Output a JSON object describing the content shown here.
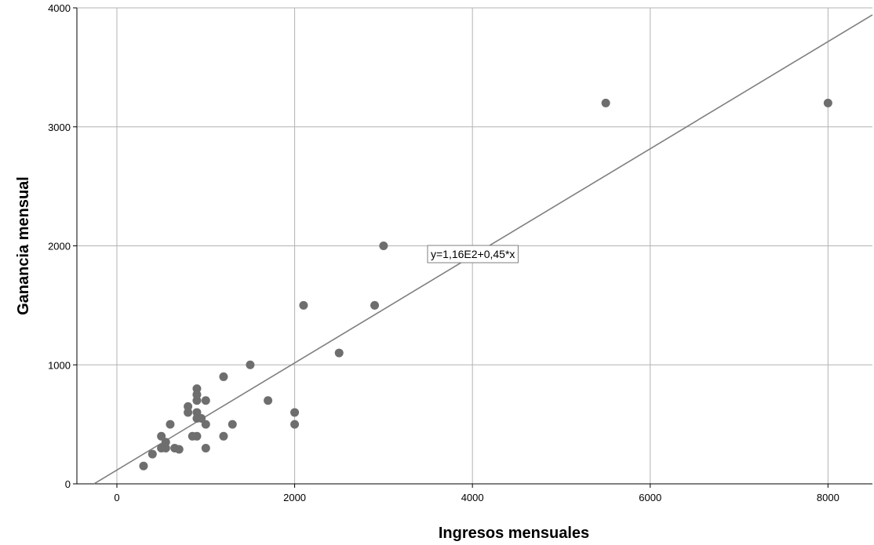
{
  "chart_data": {
    "type": "scatter",
    "xlabel": "Ingresos mensuales",
    "ylabel": "Ganancia mensual",
    "xlim": [
      -450,
      8500
    ],
    "ylim": [
      0,
      4000
    ],
    "xticks": [
      0,
      2000,
      4000,
      6000,
      8000
    ],
    "yticks": [
      0,
      1000,
      2000,
      3000,
      4000
    ],
    "grid": true,
    "colors": {
      "points": "#6e6e6e",
      "line": "#7f7f7f",
      "grid": "#b3b3b3"
    },
    "fit_line": {
      "intercept": 116,
      "slope": 0.45,
      "label": "y=1,16E2+0,45*x"
    },
    "points": [
      {
        "x": 300,
        "y": 150
      },
      {
        "x": 400,
        "y": 250
      },
      {
        "x": 500,
        "y": 300
      },
      {
        "x": 500,
        "y": 400
      },
      {
        "x": 550,
        "y": 300
      },
      {
        "x": 550,
        "y": 350
      },
      {
        "x": 600,
        "y": 500
      },
      {
        "x": 650,
        "y": 300
      },
      {
        "x": 700,
        "y": 290
      },
      {
        "x": 800,
        "y": 600
      },
      {
        "x": 800,
        "y": 650
      },
      {
        "x": 850,
        "y": 400
      },
      {
        "x": 900,
        "y": 400
      },
      {
        "x": 900,
        "y": 550
      },
      {
        "x": 900,
        "y": 600
      },
      {
        "x": 900,
        "y": 700
      },
      {
        "x": 900,
        "y": 750
      },
      {
        "x": 900,
        "y": 800
      },
      {
        "x": 950,
        "y": 550
      },
      {
        "x": 1000,
        "y": 300
      },
      {
        "x": 1000,
        "y": 500
      },
      {
        "x": 1000,
        "y": 700
      },
      {
        "x": 1200,
        "y": 400
      },
      {
        "x": 1200,
        "y": 900
      },
      {
        "x": 1300,
        "y": 500
      },
      {
        "x": 1500,
        "y": 1000
      },
      {
        "x": 1700,
        "y": 700
      },
      {
        "x": 2000,
        "y": 500
      },
      {
        "x": 2000,
        "y": 600
      },
      {
        "x": 2100,
        "y": 1500
      },
      {
        "x": 2500,
        "y": 1100
      },
      {
        "x": 2900,
        "y": 1500
      },
      {
        "x": 3000,
        "y": 2000
      },
      {
        "x": 5500,
        "y": 3200
      },
      {
        "x": 8000,
        "y": 3200
      }
    ]
  }
}
